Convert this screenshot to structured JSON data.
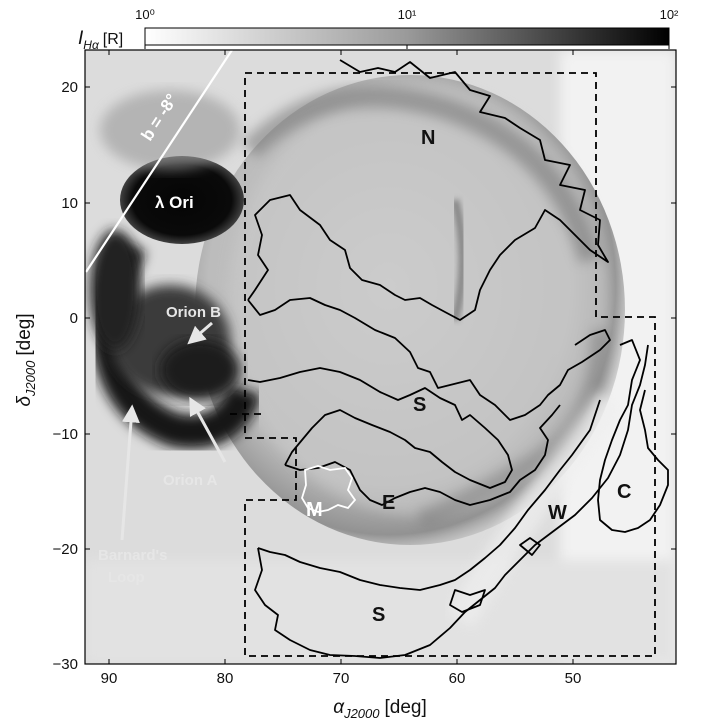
{
  "colorbar": {
    "label_symbol": "I",
    "label_sub": "Hα",
    "label_unit": "[R]",
    "tick_labels": [
      "10⁰",
      "10¹",
      "10²"
    ],
    "scale": "log",
    "range": [
      1,
      100
    ],
    "cmap_from": "#ffffff",
    "cmap_to": "#000000"
  },
  "axes": {
    "xlabel_main": "α",
    "xlabel_sub": "J2000",
    "xlabel_unit": "[deg]",
    "ylabel_main": "δ",
    "ylabel_sub": "J2000",
    "ylabel_unit": "[deg]",
    "xlim": [
      92,
      41
    ],
    "ylim": [
      -30,
      23
    ],
    "x_ticks": [
      "90",
      "80",
      "70",
      "60",
      "50"
    ],
    "y_ticks": [
      "20",
      "10",
      "0",
      "−10",
      "−20",
      "−30"
    ]
  },
  "annotations": {
    "galactic_line": "b = -8°",
    "lambda_ori": "λ Ori",
    "orion_b": "Orion B",
    "orion_a": "Orion A",
    "barnards_1": "Barnard's",
    "barnards_2": "Loop",
    "region_N": "N",
    "region_S_mid": "S",
    "region_E": "E",
    "region_M": "M",
    "region_W": "W",
    "region_C": "C",
    "region_S_low": "S"
  },
  "colors": {
    "contour": "#000000",
    "dashed_region": "#000000",
    "annotation_light": "#e6e6e6"
  }
}
